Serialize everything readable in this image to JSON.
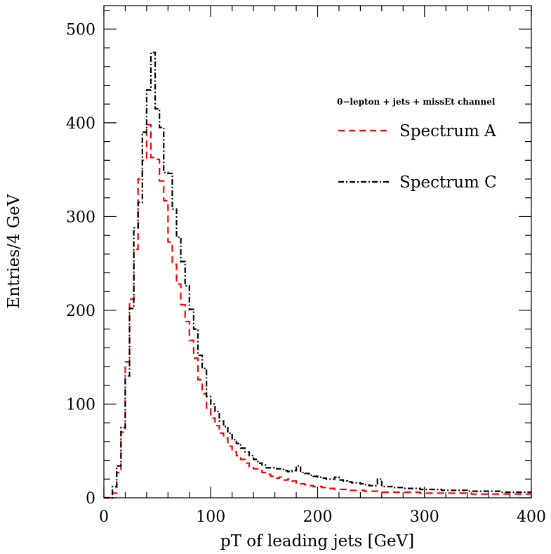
{
  "chart_data": {
    "type": "line",
    "step": true,
    "xlabel": "pT of leading jets [GeV]",
    "ylabel": "Entries/4 GeV",
    "xlim": [
      0,
      400
    ],
    "ylim": [
      0,
      525
    ],
    "xticks": [
      0,
      100,
      200,
      300,
      400
    ],
    "yticks": [
      0,
      100,
      200,
      300,
      400,
      500
    ],
    "x_tick_labels": [
      "0",
      "100",
      "200",
      "300",
      "400"
    ],
    "y_tick_labels": [
      "0",
      "100",
      "200",
      "300",
      "400",
      "500"
    ],
    "bin_width": 4,
    "x_bin_edges_start": 0,
    "grid": false,
    "legend_title": "0−lepton + jets + missEt channel",
    "legend_placement": "top-right",
    "series": [
      {
        "name": "Spectrum A",
        "color": "#ff0000",
        "dash": "dashed",
        "values": [
          0,
          0,
          5,
          27,
          70,
          145,
          212,
          265,
          340,
          360,
          398,
          363,
          361,
          338,
          317,
          273,
          249,
          228,
          206,
          188,
          168,
          149,
          126,
          111,
          95,
          85,
          77,
          69,
          64,
          55,
          49,
          45,
          41,
          37,
          33,
          31,
          29,
          27,
          25,
          23,
          21,
          22,
          19,
          20,
          18,
          16,
          15,
          14,
          13,
          12,
          12,
          11,
          10,
          10,
          9,
          9,
          9,
          8,
          8,
          8,
          8,
          7,
          7,
          7,
          7,
          6,
          6,
          6,
          6,
          6,
          6,
          6,
          6,
          6,
          5,
          5,
          5,
          5,
          5,
          5,
          5,
          5,
          5,
          5,
          5,
          5,
          4,
          4,
          4,
          4,
          4,
          4,
          4,
          4,
          4,
          4,
          4,
          4,
          4,
          4
        ]
      },
      {
        "name": "Spectrum C",
        "color": "#000000",
        "dash": "dashdot",
        "values": [
          0,
          0,
          12,
          34,
          75,
          130,
          202,
          288,
          315,
          390,
          435,
          475,
          415,
          395,
          347,
          346,
          308,
          278,
          252,
          226,
          201,
          180,
          152,
          138,
          108,
          100,
          92,
          82,
          76,
          69,
          62,
          58,
          53,
          49,
          45,
          41,
          37,
          35,
          32,
          32,
          31,
          31,
          29,
          28,
          29,
          34,
          27,
          26,
          24,
          23,
          22,
          21,
          20,
          20,
          22,
          19,
          18,
          17,
          16,
          16,
          15,
          14,
          13,
          13,
          20,
          12,
          12,
          12,
          11,
          11,
          10,
          10,
          10,
          10,
          9,
          9,
          9,
          9,
          9,
          8,
          8,
          8,
          8,
          8,
          8,
          7,
          7,
          7,
          7,
          7,
          7,
          7,
          7,
          6,
          6,
          6,
          6,
          6,
          6,
          6
        ]
      }
    ]
  }
}
